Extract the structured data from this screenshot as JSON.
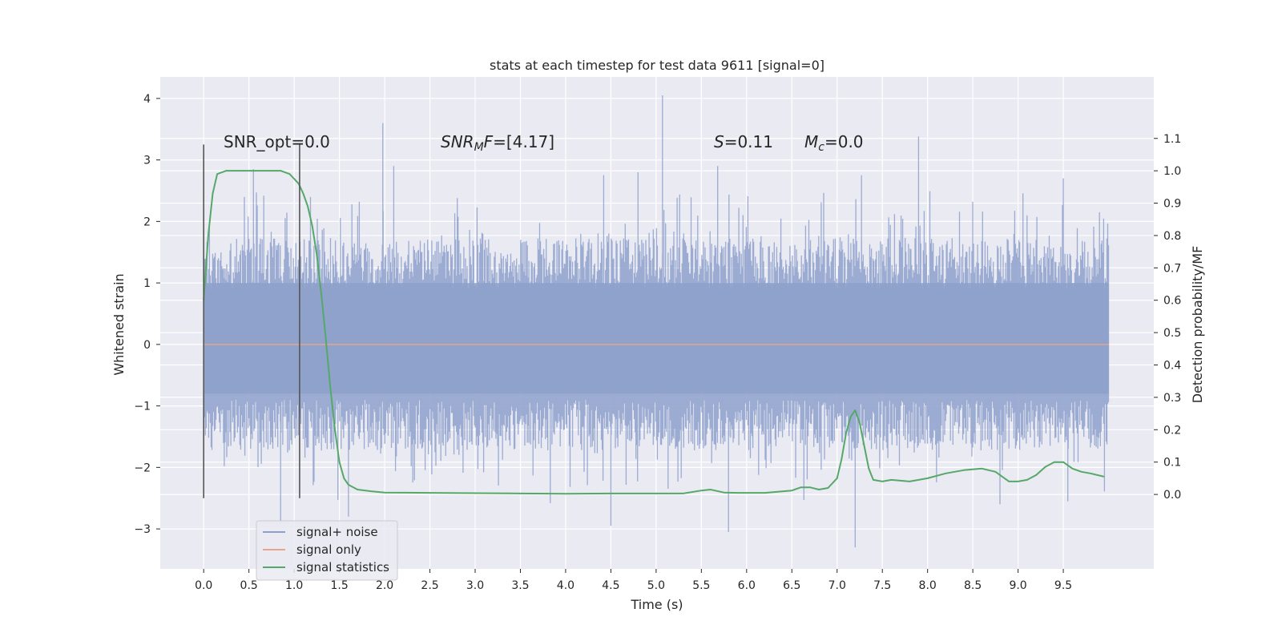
{
  "chart_data": {
    "type": "line",
    "title": "stats at each timestep for test data 9611 [signal=0]",
    "xlabel": "Time (s)",
    "ylabel": "Whitened strain",
    "y2label": "Detection probability/MF",
    "xlim": [
      -0.48,
      10.5
    ],
    "ylim": [
      -3.65,
      4.35
    ],
    "y2lim": [
      -0.23,
      1.29
    ],
    "xticks": [
      "0.0",
      "0.5",
      "1.0",
      "1.5",
      "2.0",
      "2.5",
      "3.0",
      "3.5",
      "4.0",
      "4.5",
      "5.0",
      "5.5",
      "6.0",
      "6.5",
      "7.0",
      "7.5",
      "8.0",
      "8.5",
      "9.0",
      "9.5"
    ],
    "yticks": [
      "4",
      "3",
      "2",
      "1",
      "0",
      "−1",
      "−2",
      "−3"
    ],
    "y2ticks": [
      "1.1",
      "1.0",
      "0.9",
      "0.8",
      "0.7",
      "0.6",
      "0.5",
      "0.4",
      "0.3",
      "0.2",
      "0.1",
      "0.0"
    ],
    "grid": true,
    "legend_position": "lower-left",
    "annotations": {
      "snr_opt": "SNR_opt=0.0",
      "snr_mf_sym": "SNR",
      "snr_mf_sub": "M",
      "snr_mf_sym2": "F",
      "snr_mf_val": "=[4.17]",
      "s_sym": "S",
      "s_val": "=0.11",
      "mc_sym": "M",
      "mc_sub": "c",
      "mc_val": "=0.0"
    },
    "vlines": [
      {
        "x": 0.0,
        "ymin": -2.5,
        "ymax": 3.25
      },
      {
        "x": 1.06,
        "ymin": -2.5,
        "ymax": 3.25
      }
    ],
    "series": [
      {
        "name": "signal+ noise",
        "color": "#8da0cb",
        "kind": "noise",
        "x_range": [
          0.0,
          10.0
        ],
        "envelope": {
          "typical_upper": 1.5,
          "typical_lower": -1.5,
          "dense_band": [
            -0.8,
            1.0
          ]
        },
        "peaks": [
          {
            "x": 0.45,
            "y": 2.4
          },
          {
            "x": 0.55,
            "y": 2.85
          },
          {
            "x": 1.18,
            "y": 2.4
          },
          {
            "x": 1.98,
            "y": 3.6
          },
          {
            "x": 2.1,
            "y": 2.9
          },
          {
            "x": 4.42,
            "y": 2.75
          },
          {
            "x": 4.8,
            "y": 2.8
          },
          {
            "x": 5.07,
            "y": 4.05
          },
          {
            "x": 5.68,
            "y": 2.9
          },
          {
            "x": 7.27,
            "y": 2.75
          },
          {
            "x": 7.9,
            "y": 3.38
          },
          {
            "x": 9.5,
            "y": 2.7
          },
          {
            "x": 0.85,
            "y": -2.9
          },
          {
            "x": 1.6,
            "y": -2.8
          },
          {
            "x": 4.5,
            "y": -2.95
          },
          {
            "x": 5.8,
            "y": -3.05
          },
          {
            "x": 7.2,
            "y": -3.3
          },
          {
            "x": 8.8,
            "y": -2.6
          },
          {
            "x": 9.55,
            "y": -2.55
          },
          {
            "x": 9.9,
            "y": 2.15
          }
        ]
      },
      {
        "name": "signal only",
        "color": "#e5a58a",
        "kind": "line",
        "x": [
          0.0,
          10.0
        ],
        "y": [
          0.0,
          0.0
        ]
      },
      {
        "name": "signal statistics",
        "color": "#55a868",
        "kind": "line",
        "axis": "right",
        "x": [
          0.0,
          0.05,
          0.1,
          0.15,
          0.25,
          0.4,
          0.6,
          0.75,
          0.85,
          0.95,
          1.05,
          1.1,
          1.15,
          1.2,
          1.25,
          1.3,
          1.35,
          1.4,
          1.45,
          1.5,
          1.55,
          1.6,
          1.7,
          1.85,
          2.0,
          2.5,
          3.0,
          3.5,
          4.0,
          4.5,
          5.0,
          5.3,
          5.5,
          5.6,
          5.75,
          5.9,
          6.2,
          6.5,
          6.6,
          6.7,
          6.8,
          6.9,
          7.0,
          7.05,
          7.1,
          7.15,
          7.2,
          7.25,
          7.3,
          7.35,
          7.4,
          7.5,
          7.6,
          7.8,
          8.0,
          8.2,
          8.4,
          8.6,
          8.75,
          8.9,
          9.0,
          9.1,
          9.2,
          9.3,
          9.4,
          9.5,
          9.6,
          9.7,
          9.8,
          9.95
        ],
        "y": [
          0.6,
          0.8,
          0.93,
          0.99,
          1.0,
          1.0,
          1.0,
          1.0,
          1.0,
          0.99,
          0.96,
          0.93,
          0.89,
          0.83,
          0.74,
          0.62,
          0.48,
          0.33,
          0.2,
          0.1,
          0.05,
          0.03,
          0.015,
          0.01,
          0.006,
          0.005,
          0.004,
          0.003,
          0.002,
          0.003,
          0.003,
          0.003,
          0.012,
          0.015,
          0.006,
          0.005,
          0.005,
          0.012,
          0.022,
          0.022,
          0.015,
          0.02,
          0.05,
          0.11,
          0.19,
          0.24,
          0.26,
          0.22,
          0.15,
          0.08,
          0.045,
          0.04,
          0.045,
          0.04,
          0.05,
          0.065,
          0.075,
          0.08,
          0.07,
          0.04,
          0.04,
          0.045,
          0.06,
          0.085,
          0.1,
          0.1,
          0.08,
          0.07,
          0.065,
          0.055
        ]
      }
    ]
  }
}
